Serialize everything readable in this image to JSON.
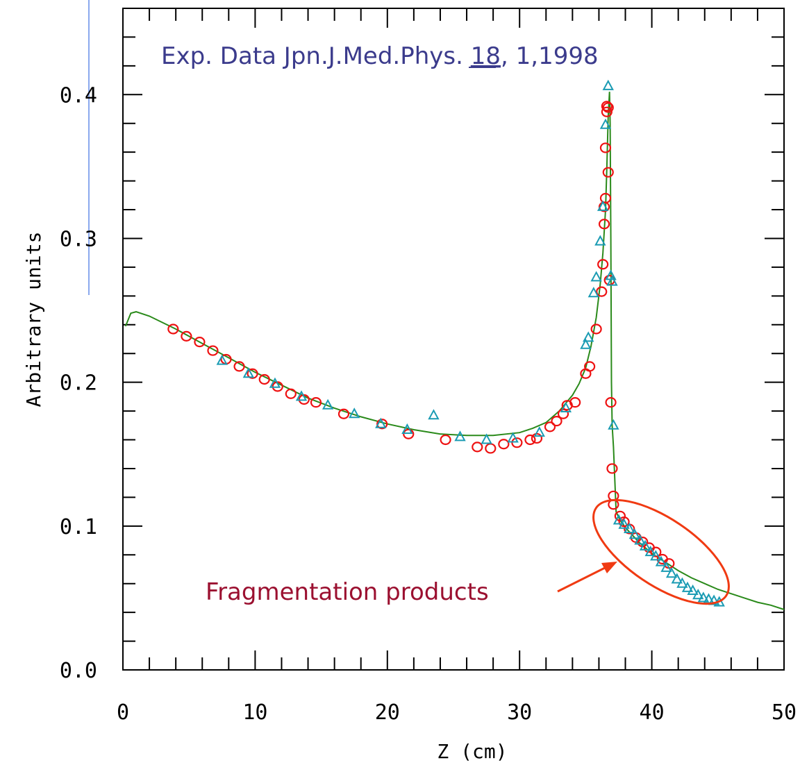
{
  "chart_data": {
    "type": "scatter",
    "title": "",
    "xlabel": "Z (cm)",
    "ylabel": "Arbitrary units",
    "xlim": [
      0,
      50
    ],
    "ylim": [
      0,
      0.46
    ],
    "x_ticks": [
      0,
      10,
      20,
      30,
      40,
      50
    ],
    "x_tick_labels": [
      "0",
      "10",
      "20",
      "30",
      "40",
      "50"
    ],
    "y_ticks": [
      0,
      0.1,
      0.2,
      0.3,
      0.4
    ],
    "y_tick_labels": [
      "0.0",
      "0.1",
      "0.2",
      "0.3",
      "0.4"
    ],
    "grid": false,
    "annotations": {
      "reference": {
        "prefix": "Exp. Data Jpn.J.Med.Phys. ",
        "volume": "18",
        "suffix": ", 1,1998",
        "color": "#3b3b8c"
      },
      "fragmentation": {
        "label": "Fragmentation products",
        "color": "#9b1030",
        "arrow_color": "#f03a12"
      }
    },
    "series": [
      {
        "marker": "circle",
        "color": "#ee1111",
        "x": [
          3.8,
          4.8,
          5.8,
          6.8,
          7.8,
          8.8,
          9.8,
          10.7,
          11.7,
          12.7,
          13.7,
          14.6,
          16.7,
          19.6,
          21.6,
          24.4,
          26.8,
          27.8,
          28.8,
          29.8,
          30.8,
          31.3,
          32.3,
          32.8,
          33.3,
          33.6,
          34.2,
          35.0,
          35.3,
          35.8,
          36.2,
          36.3,
          36.4,
          36.4,
          36.5,
          36.5,
          36.6,
          36.6,
          36.7,
          36.7,
          36.8,
          36.9,
          37.0,
          37.1,
          37.1,
          37.6,
          37.9,
          38.3,
          38.8,
          39.3,
          39.8,
          40.3,
          40.8,
          41.3
        ],
        "y": [
          0.237,
          0.232,
          0.228,
          0.222,
          0.216,
          0.211,
          0.206,
          0.202,
          0.197,
          0.192,
          0.188,
          0.186,
          0.178,
          0.171,
          0.164,
          0.16,
          0.155,
          0.154,
          0.157,
          0.158,
          0.16,
          0.161,
          0.169,
          0.173,
          0.178,
          0.184,
          0.186,
          0.206,
          0.211,
          0.237,
          0.263,
          0.282,
          0.31,
          0.322,
          0.328,
          0.363,
          0.388,
          0.392,
          0.391,
          0.346,
          0.271,
          0.186,
          0.14,
          0.121,
          0.115,
          0.107,
          0.103,
          0.098,
          0.092,
          0.089,
          0.085,
          0.082,
          0.077,
          0.074
        ]
      },
      {
        "marker": "triangle",
        "color": "#1a9bb3",
        "x": [
          7.5,
          9.5,
          11.5,
          13.5,
          15.5,
          17.5,
          19.5,
          21.5,
          23.5,
          25.5,
          27.5,
          29.5,
          31.5,
          33.5,
          35.0,
          35.2,
          35.6,
          35.8,
          36.1,
          36.3,
          36.5,
          36.7,
          36.9,
          37.0,
          37.1,
          37.5,
          37.9,
          38.3,
          38.7,
          39.1,
          39.5,
          39.9,
          40.3,
          40.7,
          41.1,
          41.5,
          41.9,
          42.3,
          42.7,
          43.1,
          43.5,
          43.9,
          44.3,
          44.7,
          45.1
        ],
        "y": [
          0.215,
          0.206,
          0.199,
          0.19,
          0.184,
          0.178,
          0.171,
          0.167,
          0.177,
          0.162,
          0.16,
          0.161,
          0.165,
          0.182,
          0.226,
          0.231,
          0.262,
          0.273,
          0.298,
          0.322,
          0.379,
          0.406,
          0.274,
          0.27,
          0.17,
          0.104,
          0.101,
          0.098,
          0.094,
          0.09,
          0.086,
          0.082,
          0.079,
          0.075,
          0.071,
          0.067,
          0.063,
          0.06,
          0.057,
          0.055,
          0.052,
          0.05,
          0.049,
          0.048,
          0.047
        ]
      },
      {
        "marker": "line",
        "color": "#2a8a1a",
        "x": [
          0.2,
          0.6,
          1.0,
          2,
          4,
          6,
          8,
          10,
          12,
          14,
          16,
          18,
          20,
          22,
          24,
          26,
          28,
          30,
          31,
          32,
          33,
          34,
          34.5,
          35,
          35.4,
          35.8,
          36.1,
          36.3,
          36.5,
          36.6,
          36.7,
          36.8,
          36.85,
          36.9,
          36.95,
          37.0,
          37.1,
          37.3,
          37.6,
          38,
          39,
          40,
          41,
          42,
          43,
          44,
          45,
          46,
          47,
          48,
          49,
          50
        ],
        "y": [
          0.239,
          0.248,
          0.249,
          0.246,
          0.237,
          0.227,
          0.217,
          0.207,
          0.198,
          0.189,
          0.182,
          0.176,
          0.171,
          0.167,
          0.164,
          0.163,
          0.163,
          0.165,
          0.168,
          0.172,
          0.18,
          0.191,
          0.199,
          0.21,
          0.225,
          0.245,
          0.268,
          0.29,
          0.32,
          0.35,
          0.385,
          0.402,
          0.38,
          0.3,
          0.2,
          0.17,
          0.155,
          0.11,
          0.104,
          0.099,
          0.089,
          0.081,
          0.075,
          0.069,
          0.064,
          0.06,
          0.056,
          0.053,
          0.05,
          0.047,
          0.045,
          0.042
        ]
      }
    ]
  }
}
